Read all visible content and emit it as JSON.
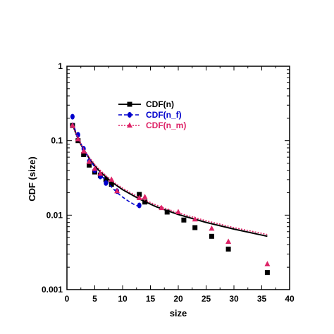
{
  "chart_data": {
    "type": "scatter",
    "title": "",
    "xlabel": "size",
    "ylabel": "CDF (size)",
    "xlim": [
      0,
      40
    ],
    "ylim": [
      0.001,
      1
    ],
    "yscale": "log",
    "x_ticks": [
      0,
      5,
      10,
      15,
      20,
      25,
      30,
      35,
      40
    ],
    "y_ticks": [
      {
        "value": 0.001,
        "label": "0.001"
      },
      {
        "value": 0.01,
        "label": "0.01"
      },
      {
        "value": 0.1,
        "label": "0.1"
      },
      {
        "value": 1,
        "label": "1"
      }
    ],
    "grid": false,
    "legend": "upper-center",
    "series": [
      {
        "name": "CDF(n)",
        "color": "#000000",
        "marker": "square",
        "line": "solid",
        "points": [
          [
            1,
            0.16
          ],
          [
            2,
            0.1
          ],
          [
            3,
            0.065
          ],
          [
            4,
            0.047
          ],
          [
            5,
            0.038
          ],
          [
            6,
            0.034
          ],
          [
            7,
            0.03
          ],
          [
            8,
            0.026
          ],
          [
            13,
            0.019
          ],
          [
            14,
            0.015
          ],
          [
            18,
            0.011
          ],
          [
            21,
            0.0086
          ],
          [
            23,
            0.0068
          ],
          [
            26,
            0.0052
          ],
          [
            29,
            0.0035
          ],
          [
            36,
            0.0017
          ]
        ],
        "fit": [
          [
            1,
            0.165
          ],
          [
            2,
            0.105
          ],
          [
            3,
            0.076
          ],
          [
            4,
            0.058
          ],
          [
            5,
            0.046
          ],
          [
            6,
            0.038
          ],
          [
            8,
            0.028
          ],
          [
            10,
            0.022
          ],
          [
            13,
            0.0165
          ],
          [
            16,
            0.013
          ],
          [
            20,
            0.0102
          ],
          [
            25,
            0.008
          ],
          [
            30,
            0.0065
          ],
          [
            36,
            0.0052
          ]
        ]
      },
      {
        "name": "CDF(n_f)",
        "color": "#0000cc",
        "marker": "diamond",
        "line": "dashed",
        "points": [
          [
            1,
            0.21
          ],
          [
            2,
            0.12
          ],
          [
            3,
            0.078
          ],
          [
            4,
            0.053
          ],
          [
            5,
            0.04
          ],
          [
            6,
            0.033
          ],
          [
            7,
            0.027
          ],
          [
            9,
            0.021
          ],
          [
            13,
            0.0135
          ]
        ],
        "fit": [
          [
            1,
            0.175
          ],
          [
            2,
            0.11
          ],
          [
            3,
            0.077
          ],
          [
            4,
            0.057
          ],
          [
            5,
            0.044
          ],
          [
            6,
            0.035
          ],
          [
            7,
            0.029
          ],
          [
            8,
            0.024
          ],
          [
            9,
            0.02
          ],
          [
            10,
            0.0175
          ],
          [
            11,
            0.0155
          ],
          [
            12,
            0.014
          ],
          [
            13,
            0.013
          ]
        ]
      },
      {
        "name": "CDF(n_m)",
        "color": "#dd2266",
        "marker": "triangle",
        "line": "dotted",
        "points": [
          [
            1,
            0.16
          ],
          [
            2,
            0.105
          ],
          [
            3,
            0.072
          ],
          [
            4,
            0.052
          ],
          [
            5,
            0.042
          ],
          [
            6,
            0.036
          ],
          [
            8,
            0.03
          ],
          [
            9,
            0.021
          ],
          [
            13,
            0.017
          ],
          [
            14,
            0.0175
          ],
          [
            17,
            0.0125
          ],
          [
            20,
            0.011
          ],
          [
            23,
            0.0088
          ],
          [
            26,
            0.0066
          ],
          [
            29,
            0.0044
          ],
          [
            36,
            0.0022
          ]
        ],
        "fit": [
          [
            1,
            0.165
          ],
          [
            2,
            0.107
          ],
          [
            3,
            0.078
          ],
          [
            4,
            0.06
          ],
          [
            5,
            0.048
          ],
          [
            6,
            0.04
          ],
          [
            8,
            0.029
          ],
          [
            10,
            0.023
          ],
          [
            13,
            0.0172
          ],
          [
            16,
            0.0137
          ],
          [
            20,
            0.0107
          ],
          [
            25,
            0.0084
          ],
          [
            30,
            0.0068
          ],
          [
            36,
            0.0055
          ]
        ]
      }
    ]
  }
}
